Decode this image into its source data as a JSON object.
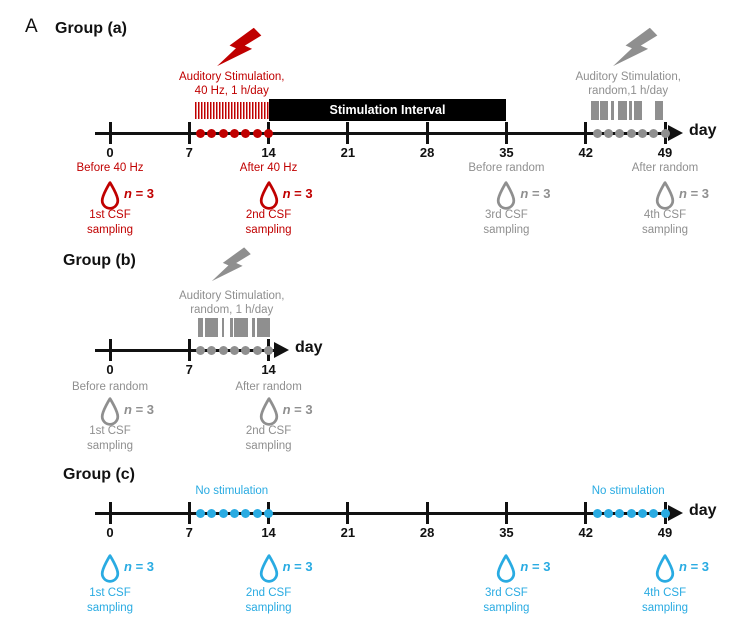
{
  "panel_label": "A",
  "colors": {
    "red": "#c00000",
    "gray": "#8f8f8f",
    "blue": "#29abe2",
    "black": "#111111"
  },
  "groups": [
    {
      "title": "Group (a)",
      "axis_label": "day",
      "tick_days": [
        0,
        7,
        14,
        21,
        28,
        35,
        42,
        49
      ],
      "events": [
        {
          "color": "red",
          "icon": "lightning-icon",
          "bar": "stripes",
          "from_day": 7.5,
          "to_day": 14,
          "lines": [
            "Auditory Stimulation,",
            "40 Hz, 1 h/day"
          ]
        },
        {
          "color": "gray",
          "icon": "lightning-icon",
          "bar": "random",
          "from_day": 42.5,
          "to_day": 49,
          "lines": [
            "Auditory Stimulation,",
            "random,1 h/day"
          ]
        }
      ],
      "interval_bar": {
        "label": "Stimulation Interval",
        "from_day": 14,
        "to_day": 35
      },
      "dot_runs": [
        {
          "color": "red",
          "from_day": 8,
          "to_day": 14
        },
        {
          "color": "gray",
          "from_day": 43,
          "to_day": 49
        }
      ],
      "samplings": [
        {
          "day": 0,
          "color": "red",
          "context": "Before 40 Hz",
          "n_label": "n = 3",
          "lines": [
            "1st CSF",
            "sampling"
          ]
        },
        {
          "day": 14,
          "color": "red",
          "context": "After 40 Hz",
          "n_label": "n = 3",
          "lines": [
            "2nd CSF",
            "sampling"
          ]
        },
        {
          "day": 35,
          "color": "gray",
          "context": "Before random",
          "n_label": "n = 3",
          "lines": [
            "3rd CSF",
            "sampling"
          ]
        },
        {
          "day": 49,
          "color": "gray",
          "context": "After random",
          "n_label": "n = 3",
          "lines": [
            "4th CSF",
            "sampling"
          ]
        }
      ]
    },
    {
      "title": "Group (b)",
      "axis_label": "day",
      "tick_days": [
        0,
        7,
        14
      ],
      "events": [
        {
          "color": "gray",
          "icon": "lightning-icon",
          "bar": "random",
          "from_day": 7.5,
          "to_day": 14,
          "lines": [
            "Auditory Stimulation,",
            "random, 1 h/day"
          ]
        }
      ],
      "dot_runs": [
        {
          "color": "gray",
          "from_day": 8,
          "to_day": 14
        }
      ],
      "samplings": [
        {
          "day": 0,
          "color": "gray",
          "context": "Before random",
          "n_label": "n = 3",
          "lines": [
            "1st CSF",
            "sampling"
          ]
        },
        {
          "day": 14,
          "color": "gray",
          "context": "After random",
          "n_label": "n = 3",
          "lines": [
            "2nd CSF",
            "sampling"
          ]
        }
      ]
    },
    {
      "title": "Group (c)",
      "axis_label": "day",
      "tick_days": [
        0,
        7,
        14,
        21,
        28,
        35,
        42,
        49
      ],
      "no_stimulation_labels": [
        {
          "text": "No stimulation",
          "from_day": 7.5,
          "to_day": 14
        },
        {
          "text": "No stimulation",
          "from_day": 42.5,
          "to_day": 49
        }
      ],
      "dot_runs": [
        {
          "color": "blue",
          "from_day": 8,
          "to_day": 14
        },
        {
          "color": "blue",
          "from_day": 43,
          "to_day": 49
        }
      ],
      "samplings": [
        {
          "day": 0,
          "color": "blue",
          "n_label": "n = 3",
          "lines": [
            "1st CSF",
            "sampling"
          ]
        },
        {
          "day": 14,
          "color": "blue",
          "n_label": "n = 3",
          "lines": [
            "2nd CSF",
            "sampling"
          ]
        },
        {
          "day": 35,
          "color": "blue",
          "n_label": "n = 3",
          "lines": [
            "3rd CSF",
            "sampling"
          ]
        },
        {
          "day": 49,
          "color": "blue",
          "n_label": "n = 3",
          "lines": [
            "4th CSF",
            "sampling"
          ]
        }
      ]
    }
  ]
}
